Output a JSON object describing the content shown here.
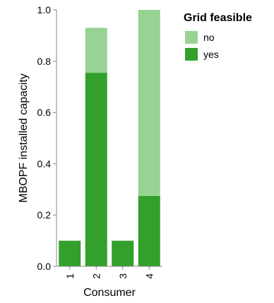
{
  "chart_data": {
    "type": "bar",
    "stacked": true,
    "categories": [
      "1",
      "2",
      "3",
      "4"
    ],
    "xlabel": "Consumer",
    "ylabel": "MBOPF installed capacity",
    "ylim": [
      0,
      1.0
    ],
    "yticks": [
      0.0,
      0.2,
      0.4,
      0.6,
      0.8,
      1.0
    ],
    "ytick_labels": [
      "0.0",
      "0.2",
      "0.4",
      "0.6",
      "0.8",
      "1.0"
    ],
    "grid": false,
    "legend": {
      "title": "Grid feasible",
      "placement": "right",
      "entries": [
        "no",
        "yes"
      ]
    },
    "series": [
      {
        "name": "yes",
        "color": "#33a02c",
        "values": [
          0.1,
          0.755,
          0.1,
          0.275
        ]
      },
      {
        "name": "no",
        "color": "#98d393",
        "values": [
          0.0,
          0.175,
          0.0,
          0.725
        ]
      }
    ]
  }
}
